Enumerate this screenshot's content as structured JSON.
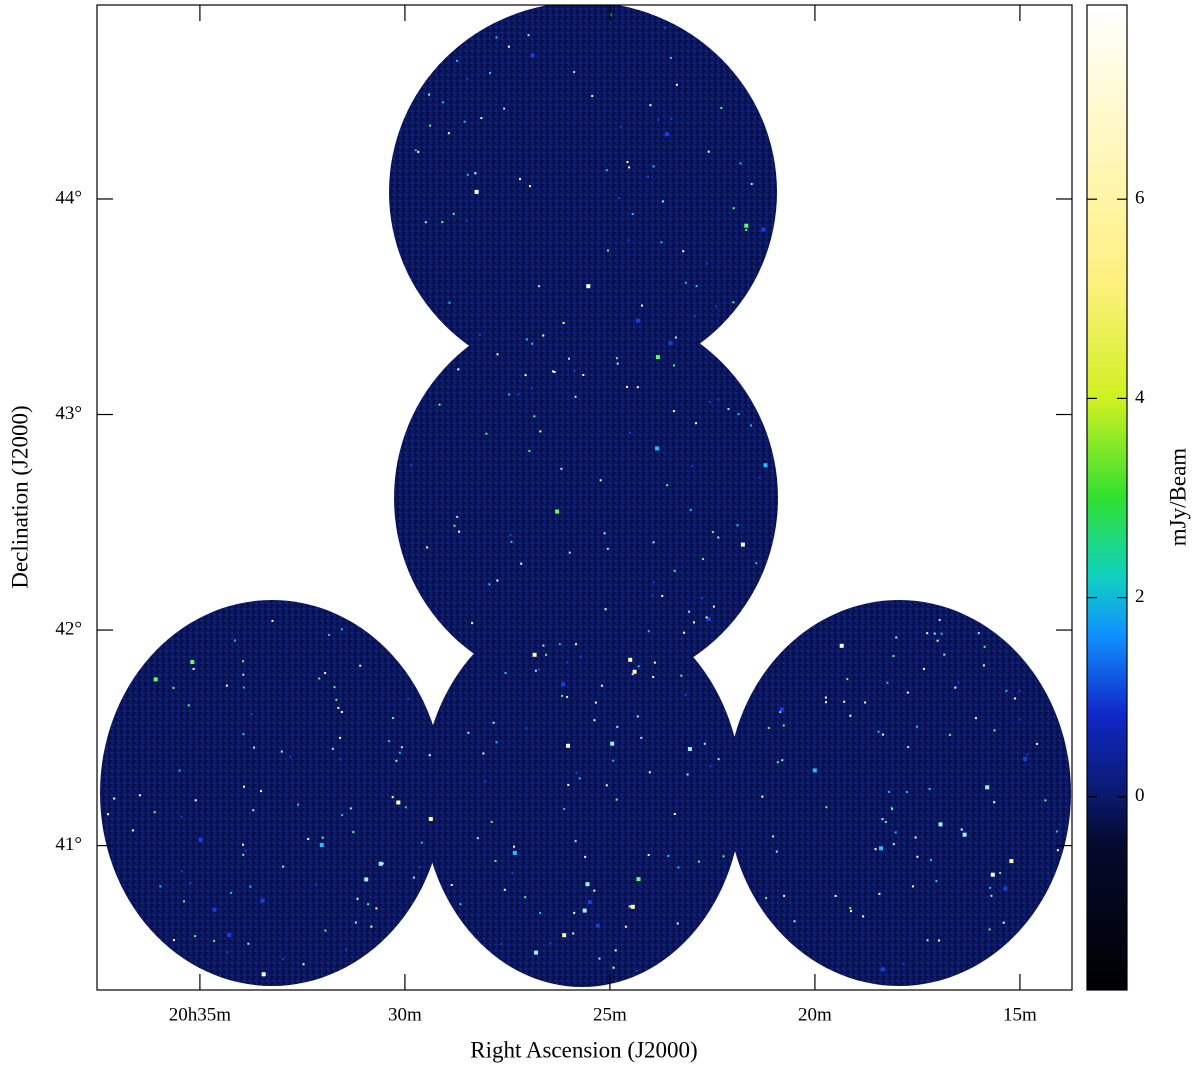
{
  "chart_data": {
    "type": "image",
    "xlabel": "Right Ascension (J2000)",
    "ylabel": "Declination (J2000)",
    "colorbar_label": "mJy/Beam",
    "xlim": [
      37.51,
      13.73
    ],
    "xticks": [
      {
        "value": 35,
        "label": "20h35m"
      },
      {
        "value": 30,
        "label": "30m"
      },
      {
        "value": 25,
        "label": "25m"
      },
      {
        "value": 20,
        "label": "20m"
      },
      {
        "value": 15,
        "label": "15m"
      }
    ],
    "ylim": [
      40.33,
      44.9
    ],
    "yticks": [
      {
        "value": 41,
        "label": "41°"
      },
      {
        "value": 42,
        "label": "42°"
      },
      {
        "value": 43,
        "label": "43°"
      },
      {
        "value": 44,
        "label": "44°"
      }
    ],
    "clim": [
      -1.94,
      7.95
    ],
    "cticks": [
      0,
      2,
      4,
      6
    ]
  }
}
